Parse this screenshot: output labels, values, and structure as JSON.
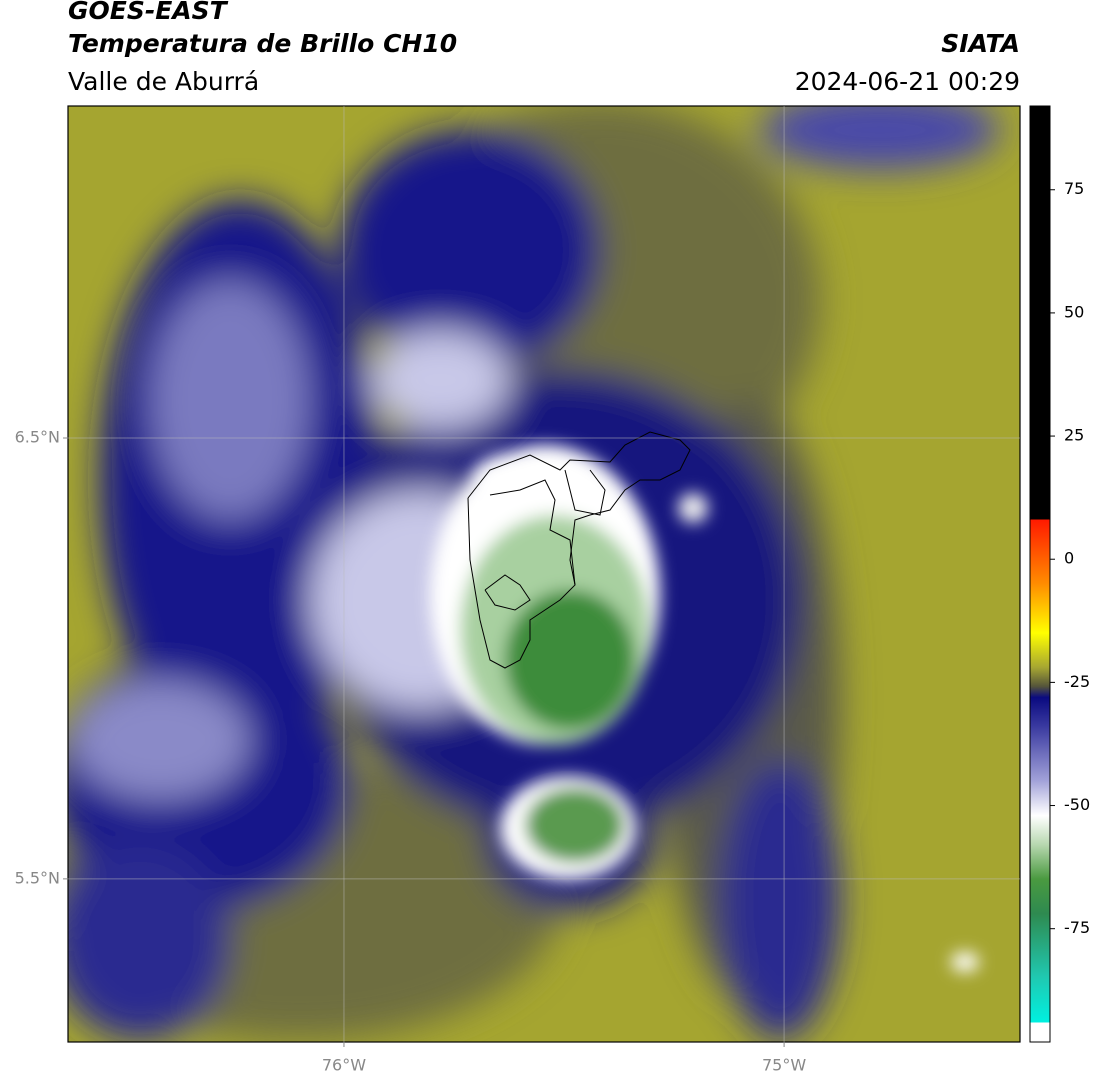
{
  "header": {
    "satellite": "GOES-EAST",
    "product": "Temperatura de Brillo CH10",
    "region": "Valle de Aburrá",
    "agency": "SIATA",
    "datetime": "2024-06-21 00:29"
  },
  "map": {
    "lonlim": [
      -76.627,
      -74.464
    ],
    "latlim": [
      5.13,
      7.253
    ],
    "lonticks": [
      {
        "value": -76,
        "label": "76°W"
      },
      {
        "value": -75,
        "label": "75°W"
      }
    ],
    "latticks": [
      {
        "value": 6.5,
        "label": "6.5°N"
      },
      {
        "value": 5.5,
        "label": "5.5°N"
      }
    ],
    "grid": true
  },
  "colorbar": {
    "clim": [
      -98,
      92
    ],
    "ticks": [
      75,
      50,
      25,
      0,
      -25,
      -50,
      -75
    ]
  }
}
